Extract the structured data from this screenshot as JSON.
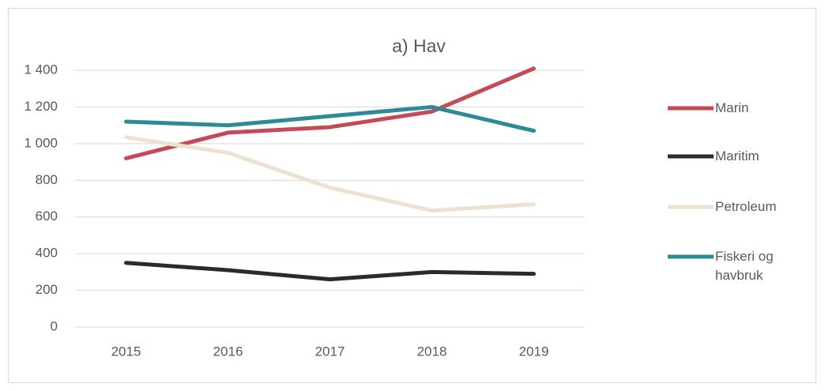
{
  "chart_data": {
    "type": "line",
    "title": "a) Hav",
    "categories": [
      "2015",
      "2016",
      "2017",
      "2018",
      "2019"
    ],
    "series": [
      {
        "name": "Marin",
        "color": "#c44a56",
        "values": [
          920,
          1060,
          1090,
          1175,
          1410
        ]
      },
      {
        "name": "Maritim",
        "color": "#2b2b2b",
        "values": [
          350,
          310,
          260,
          300,
          290
        ]
      },
      {
        "name": "Petroleum",
        "color": "#ede1d2",
        "values": [
          1035,
          950,
          760,
          635,
          670
        ]
      },
      {
        "name": "Fiskeri og havbruk",
        "color": "#2f8a98",
        "values": [
          1120,
          1100,
          1150,
          1200,
          1070
        ]
      }
    ],
    "ylim": [
      0,
      1400
    ],
    "yticks": [
      0,
      200,
      400,
      600,
      800,
      {
        "value": 1000,
        "label": "1 000"
      },
      {
        "value": 1200,
        "label": "1 200"
      },
      {
        "value": 1400,
        "label": "1 400"
      }
    ],
    "grid": true,
    "legend": "right"
  }
}
